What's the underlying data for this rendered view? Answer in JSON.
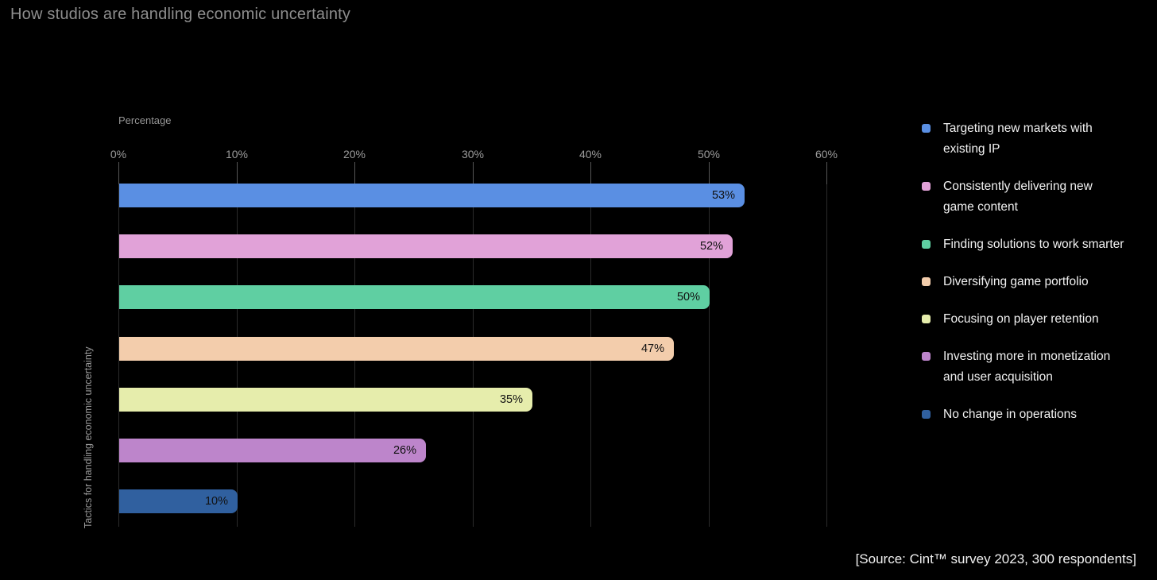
{
  "title": "How studios are handling economic uncertainty",
  "source": "[Source: Cint™ survey 2023, 300 respondents]",
  "chart_data": {
    "type": "bar",
    "orientation": "horizontal",
    "title": "How studios are handling economic uncertainty",
    "xlabel": "Percentage",
    "ylabel": "Tactics for handling economic uncertainty",
    "xlim": [
      0,
      60
    ],
    "x_ticks": [
      "0%",
      "10%",
      "20%",
      "30%",
      "40%",
      "50%",
      "60%"
    ],
    "grid": true,
    "legend_position": "right",
    "categories": [
      "Targeting new markets with existing IP",
      "Consistently delivering new game content",
      "Finding solutions to work smarter",
      "Diversifying game portfolio",
      "Focusing on player retention",
      "Investing more in monetization and user acquisition",
      "No change in operations"
    ],
    "values": [
      53,
      52,
      50,
      47,
      35,
      26,
      10
    ],
    "value_labels": [
      "53%",
      "52%",
      "50%",
      "47%",
      "35%",
      "26%",
      "10%"
    ],
    "colors": [
      "#5A8FE3",
      "#E1A2D8",
      "#5FCFA2",
      "#F3CDAC",
      "#E6EDAC",
      "#BD85CB",
      "#30609F"
    ]
  },
  "legend": {
    "items": [
      {
        "label": "Targeting new markets with existing IP",
        "color": "#5A8FE3"
      },
      {
        "label": "Consistently delivering new game content",
        "color": "#E1A2D8"
      },
      {
        "label": "Finding solutions to work smarter",
        "color": "#5FCFA2"
      },
      {
        "label": "Diversifying game portfolio",
        "color": "#F3CDAC"
      },
      {
        "label": "Focusing on player retention",
        "color": "#E6EDAC"
      },
      {
        "label": "Investing more in monetization and user acquisition",
        "color": "#BD85CB"
      },
      {
        "label": "No change in operations",
        "color": "#30609F"
      }
    ]
  },
  "colors": {
    "background": "#000000",
    "title_text": "#8e8e8e",
    "axis_text": "#9c9c9c",
    "gridline": "#2b2b2b",
    "tick": "#565656",
    "legend_text": "#f1f1f1",
    "bar_value_text": "#111111",
    "source_text": "#f2f2f2"
  }
}
